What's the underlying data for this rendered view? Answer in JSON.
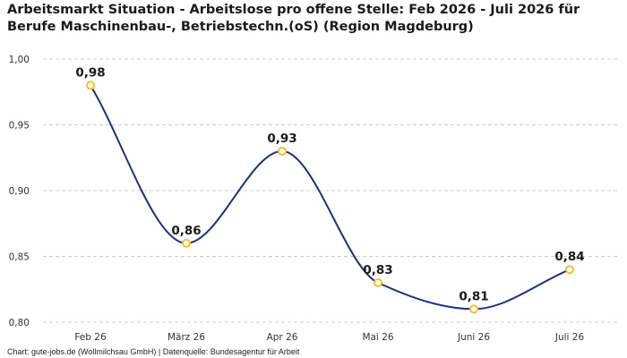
{
  "chart_data": {
    "type": "line",
    "title": "Arbeitsmarkt Situation - Arbeitslose pro offene Stelle: Feb 2026 - Juli 2026 für Berufe Maschinenbau-, Betriebstechn.(oS) (Region Magdeburg)",
    "categories": [
      "Feb 26",
      "März 26",
      "Apr 26",
      "Mai 26",
      "Juni 26",
      "Juli 26"
    ],
    "series": [
      {
        "values": [
          0.98,
          0.86,
          0.93,
          0.83,
          0.81,
          0.84
        ],
        "value_labels": [
          "0,98",
          "0,86",
          "0,93",
          "0,83",
          "0,81",
          "0,84"
        ]
      }
    ],
    "yticks": [
      0.8,
      0.85,
      0.9,
      0.95,
      1.0
    ],
    "ytick_labels": [
      "0,80",
      "0,85",
      "0,90",
      "0,95",
      "1,00"
    ],
    "ylim": [
      0.8,
      1.0
    ],
    "xlabel": "",
    "ylabel": "",
    "grid": "horizontal dashed",
    "smooth": true,
    "colors": {
      "line": "#1f2d86",
      "marker_edge": "#f2c12e",
      "marker_fill": "#ffffff",
      "grid": "#cccccc"
    }
  },
  "footer": {
    "source": "Chart: gute-jobs.de (Wollmilchsau GmbH) | Datenquelle: Bundesagentur für Arbeit"
  }
}
